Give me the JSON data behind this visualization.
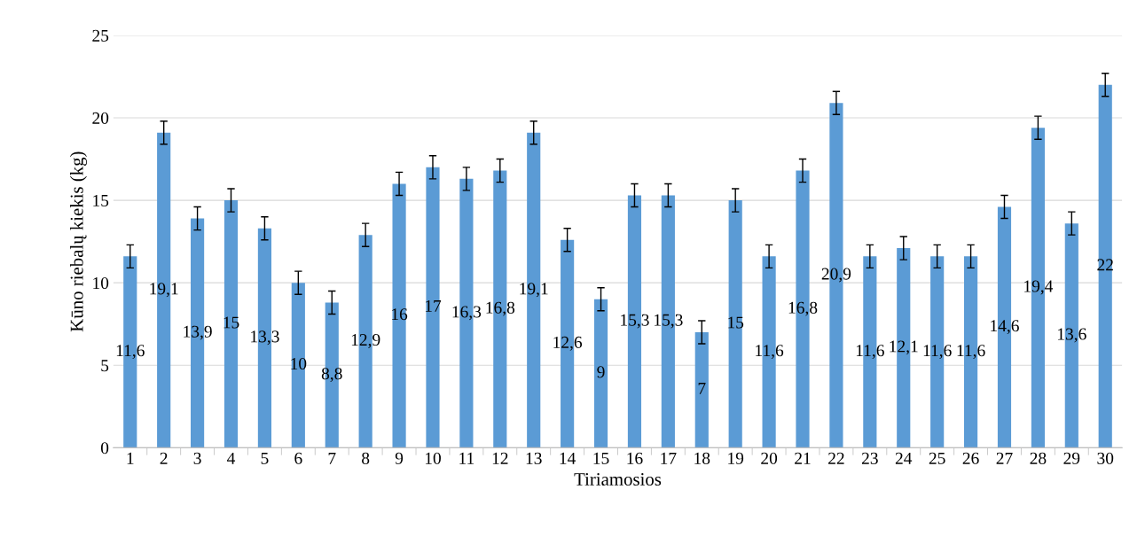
{
  "chart_data": {
    "type": "bar",
    "xlabel": "Tiriamosios",
    "ylabel": "Kūno riebalų kiekis (kg)",
    "categories": [
      "1",
      "2",
      "3",
      "4",
      "5",
      "6",
      "7",
      "8",
      "9",
      "10",
      "11",
      "12",
      "13",
      "14",
      "15",
      "16",
      "17",
      "18",
      "19",
      "20",
      "21",
      "22",
      "23",
      "24",
      "25",
      "26",
      "27",
      "28",
      "29",
      "30"
    ],
    "values": [
      11.6,
      19.1,
      13.9,
      15,
      13.3,
      10,
      8.8,
      12.9,
      16,
      17,
      16.3,
      16.8,
      19.1,
      12.6,
      9,
      15.3,
      15.3,
      7,
      15,
      11.6,
      16.8,
      20.9,
      11.6,
      12.1,
      11.6,
      11.6,
      14.6,
      19.4,
      13.6,
      22
    ],
    "value_labels": [
      "11,6",
      "19,1",
      "13,9",
      "15",
      "13,3",
      "10",
      "8,8",
      "12,9",
      "16",
      "17",
      "16,3",
      "16,8",
      "19,1",
      "12,6",
      "9",
      "15,3",
      "15,3",
      "7",
      "15",
      "11,6",
      "16,8",
      "20,9",
      "11,6",
      "12,1",
      "11,6",
      "11,6",
      "14,6",
      "19,4",
      "13,6",
      "22"
    ],
    "errors": [
      0.7,
      0.7,
      0.7,
      0.7,
      0.7,
      0.7,
      0.7,
      0.7,
      0.7,
      0.7,
      0.7,
      0.7,
      0.7,
      0.7,
      0.7,
      0.7,
      0.7,
      0.7,
      0.7,
      0.7,
      0.7,
      0.7,
      0.7,
      0.7,
      0.7,
      0.7,
      0.7,
      0.7,
      0.7,
      0.7
    ],
    "color": "#5b9bd5",
    "ylim": [
      0,
      25
    ],
    "yticks": [
      0,
      5,
      10,
      15,
      20,
      25
    ],
    "grid": "y",
    "legend": false
  }
}
